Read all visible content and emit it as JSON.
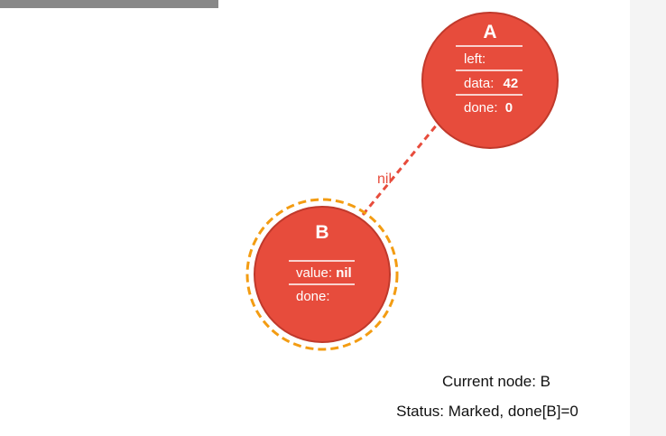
{
  "colors": {
    "node_fill": "#e74c3c",
    "node_stroke": "#c0392b",
    "highlight_ring": "#f39c12",
    "edge": "#e74c3c",
    "text_dark": "#111111"
  },
  "nodes": {
    "a": {
      "title": "A",
      "fields": [
        {
          "label": "left:",
          "value": ""
        },
        {
          "label": "data:",
          "value": "42"
        },
        {
          "label": "done:",
          "value": "0"
        }
      ]
    },
    "b": {
      "title": "B",
      "highlighted": true,
      "fields": [
        {
          "label": "value:",
          "value": "nil"
        },
        {
          "label": "done:",
          "value": ""
        }
      ]
    }
  },
  "edge": {
    "from": "A",
    "to": "B",
    "label": "nil",
    "style": "dashed",
    "arrow": "A"
  },
  "status": {
    "current_node": "Current node: B",
    "status_line": "Status: Marked, done[B]=0"
  }
}
